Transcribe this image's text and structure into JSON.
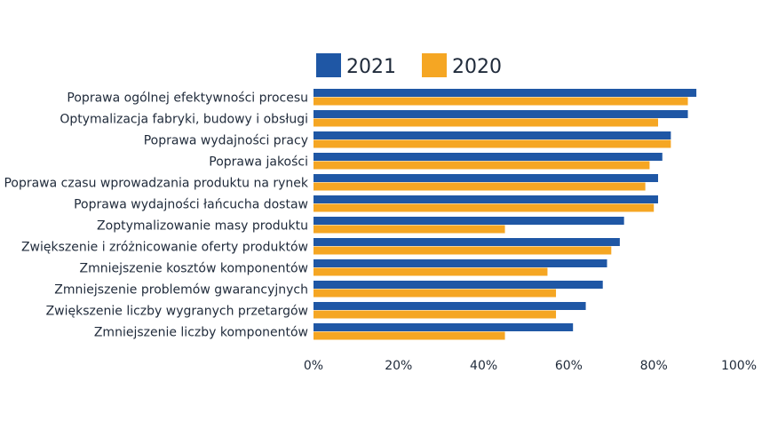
{
  "chart_data": {
    "type": "bar",
    "orientation": "horizontal",
    "categories": [
      "Poprawa ogólnej efektywności procesu",
      "Optymalizacja  fabryki, budowy i obsługi",
      "Poprawa wydajności pracy",
      "Poprawa jakości",
      "Poprawa czasu wprowadzania produktu na rynek",
      "Poprawa wydajności łańcucha dostaw",
      "Zoptymalizowanie masy produktu",
      "Zwiększenie i zróżnicowanie oferty produktów",
      "Zmniejszenie kosztów komponentów",
      "Zmniejszenie problemów gwarancyjnych",
      "Zwiększenie liczby wygranych przetargów",
      "Zmniejszenie liczby komponentów"
    ],
    "series": [
      {
        "name": "2021",
        "color": "#1f57a5",
        "values": [
          90,
          88,
          84,
          82,
          81,
          81,
          73,
          72,
          69,
          68,
          64,
          61
        ]
      },
      {
        "name": "2020",
        "color": "#f5a623",
        "values": [
          88,
          81,
          84,
          79,
          78,
          80,
          45,
          70,
          55,
          57,
          57,
          45
        ]
      }
    ],
    "xlim": [
      0,
      100
    ],
    "xticks": [
      "0%",
      "20%",
      "40%",
      "60%",
      "80%",
      "100%"
    ],
    "legend_position": "top",
    "grid": false
  }
}
